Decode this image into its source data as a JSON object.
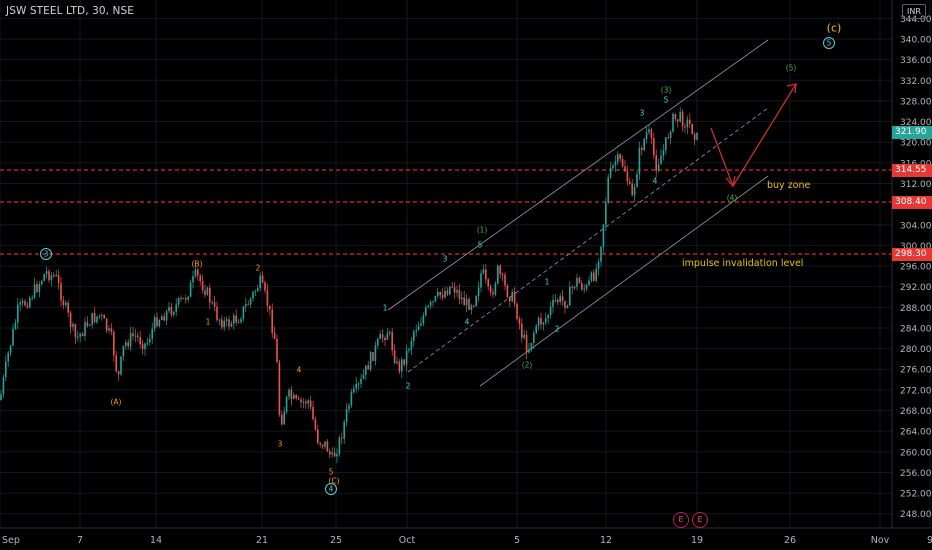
{
  "header": {
    "title": "JSW STEEL LTD, 30, NSE",
    "currency": "INR"
  },
  "colors": {
    "background": "#000000",
    "up": "#26a69a",
    "down": "#ef5350",
    "dashed": "#ff3b3b",
    "channel": "#b2b5be",
    "wave_cyan": "#4dd0e1",
    "wave_green": "#4caf50",
    "wave_orange": "#ff9800",
    "wave_yellow": "#e6c300",
    "arrow": "#d32f2f"
  },
  "price_axis": {
    "ticks": [
      "344.00",
      "340.00",
      "336.00",
      "332.00",
      "328.00",
      "324.00",
      "320.00",
      "316.00",
      "312.00",
      "304.00",
      "300.00",
      "296.00",
      "292.00",
      "288.00",
      "284.00",
      "280.00",
      "276.00",
      "272.00",
      "268.00",
      "264.00",
      "260.00",
      "256.00",
      "252.00",
      "248.00"
    ]
  },
  "time_axis": {
    "ticks": [
      "Sep",
      "7",
      "14",
      "21",
      "25",
      "Oct",
      "5",
      "12",
      "19",
      "26",
      "Nov",
      "9"
    ]
  },
  "badges": [
    {
      "value": "321.90",
      "color": "#26a69a"
    },
    {
      "value": "314.55",
      "color": "#e53935"
    },
    {
      "value": "308.40",
      "color": "#e53935"
    },
    {
      "value": "298.30",
      "color": "#e53935"
    }
  ],
  "annotations": {
    "buy_zone": "buy zone",
    "invalidation": "impulse invalidation level"
  },
  "wave_labels": [
    {
      "text": "3",
      "circle": true,
      "color": "#4dd0e1"
    },
    {
      "text": "(A)",
      "color": "#ff9800"
    },
    {
      "text": "(B)",
      "color": "#ff9800"
    },
    {
      "text": "1",
      "color": "#ff9800"
    },
    {
      "text": "2",
      "color": "#ff9800"
    },
    {
      "text": "3",
      "color": "#ff9800"
    },
    {
      "text": "4",
      "color": "#ff9800"
    },
    {
      "text": "5",
      "color": "#ff9800"
    },
    {
      "text": "(C)",
      "color": "#ff9800"
    },
    {
      "text": "4",
      "circle": true,
      "color": "#4dd0e1"
    },
    {
      "text": "1",
      "color": "#4dd0e1"
    },
    {
      "text": "2",
      "color": "#4dd0e1"
    },
    {
      "text": "3",
      "color": "#4dd0e1"
    },
    {
      "text": "4",
      "color": "#4dd0e1"
    },
    {
      "text": "5",
      "color": "#4dd0e1"
    },
    {
      "text": "(1)",
      "color": "#4caf50"
    },
    {
      "text": "1",
      "color": "#4dd0e1"
    },
    {
      "text": "2",
      "color": "#4dd0e1"
    },
    {
      "text": "(2)",
      "color": "#4caf50"
    },
    {
      "text": "3",
      "color": "#4dd0e1"
    },
    {
      "text": "4",
      "color": "#4dd0e1"
    },
    {
      "text": "5",
      "color": "#4dd0e1"
    },
    {
      "text": "(3)",
      "color": "#4caf50"
    },
    {
      "text": "(4)",
      "color": "#4caf50"
    },
    {
      "text": "(5)",
      "color": "#4caf50"
    },
    {
      "text": "(c)",
      "color": "#e6c300"
    },
    {
      "text": "5",
      "circle": true,
      "color": "#4dd0e1"
    }
  ],
  "events": [
    "E",
    "E"
  ]
}
